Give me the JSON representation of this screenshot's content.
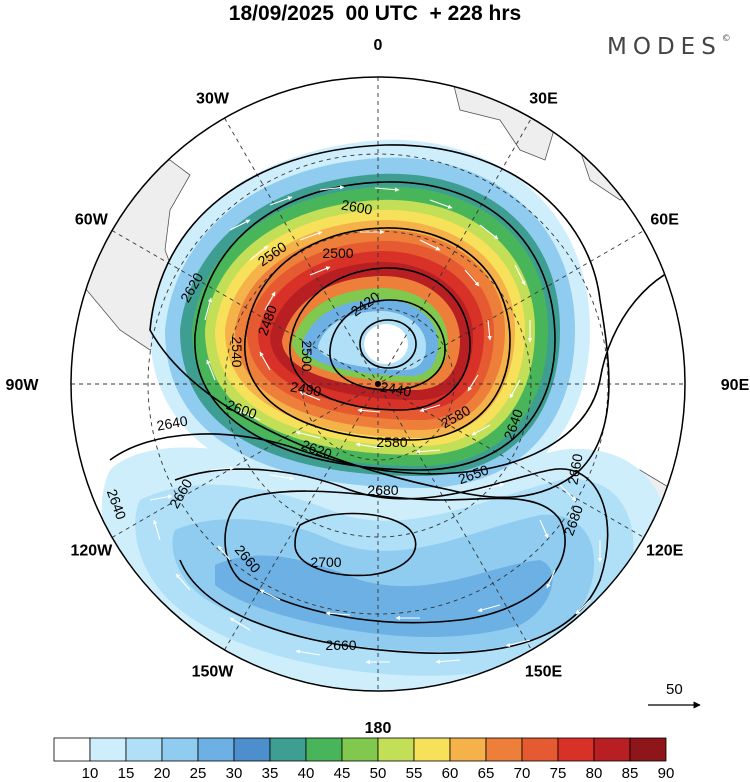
{
  "title": "18/09/2025  00 UTC  + 228 hrs",
  "brand": "MODES",
  "brand_mark": "©",
  "longitude_labels": [
    {
      "text": "0",
      "lon": 0
    },
    {
      "text": "30E",
      "lon": 30
    },
    {
      "text": "60E",
      "lon": 60
    },
    {
      "text": "90E",
      "lon": 90
    },
    {
      "text": "120E",
      "lon": 120
    },
    {
      "text": "150E",
      "lon": 150
    },
    {
      "text": "180",
      "lon": 180
    },
    {
      "text": "150W",
      "lon": -150
    },
    {
      "text": "120W",
      "lon": -120
    },
    {
      "text": "90W",
      "lon": -90
    },
    {
      "text": "60W",
      "lon": -60
    },
    {
      "text": "30W",
      "lon": -30
    }
  ],
  "contour_labels": [
    "2600",
    "2560",
    "2500",
    "2620",
    "2480",
    "2420",
    "2540",
    "2500",
    "2490",
    "2440",
    "2600",
    "2580",
    "2620",
    "2640",
    "2580",
    "2640",
    "2650",
    "2680",
    "2660",
    "2640",
    "2660",
    "2700",
    "2680",
    "2660",
    "2660"
  ],
  "vector_reference": {
    "label": "50"
  },
  "colorbar": {
    "colors": [
      "#ffffff",
      "#cfeefc",
      "#afe0f8",
      "#8fccf0",
      "#6cb0e4",
      "#4d8fcc",
      "#3f9e92",
      "#49b55a",
      "#80c94e",
      "#c3df58",
      "#f7e05a",
      "#f5b14a",
      "#ee7f3b",
      "#e65a31",
      "#d83128",
      "#b81f22",
      "#8e1519"
    ],
    "labels": [
      "10",
      "15",
      "20",
      "25",
      "30",
      "35",
      "40",
      "45",
      "50",
      "55",
      "60",
      "65",
      "70",
      "75",
      "80",
      "85",
      "90"
    ]
  },
  "colors": {
    "land": "#eeeeee",
    "coast": "#555555",
    "grid": "#333333",
    "contour": "#000000",
    "arrows": "#ffffff"
  }
}
